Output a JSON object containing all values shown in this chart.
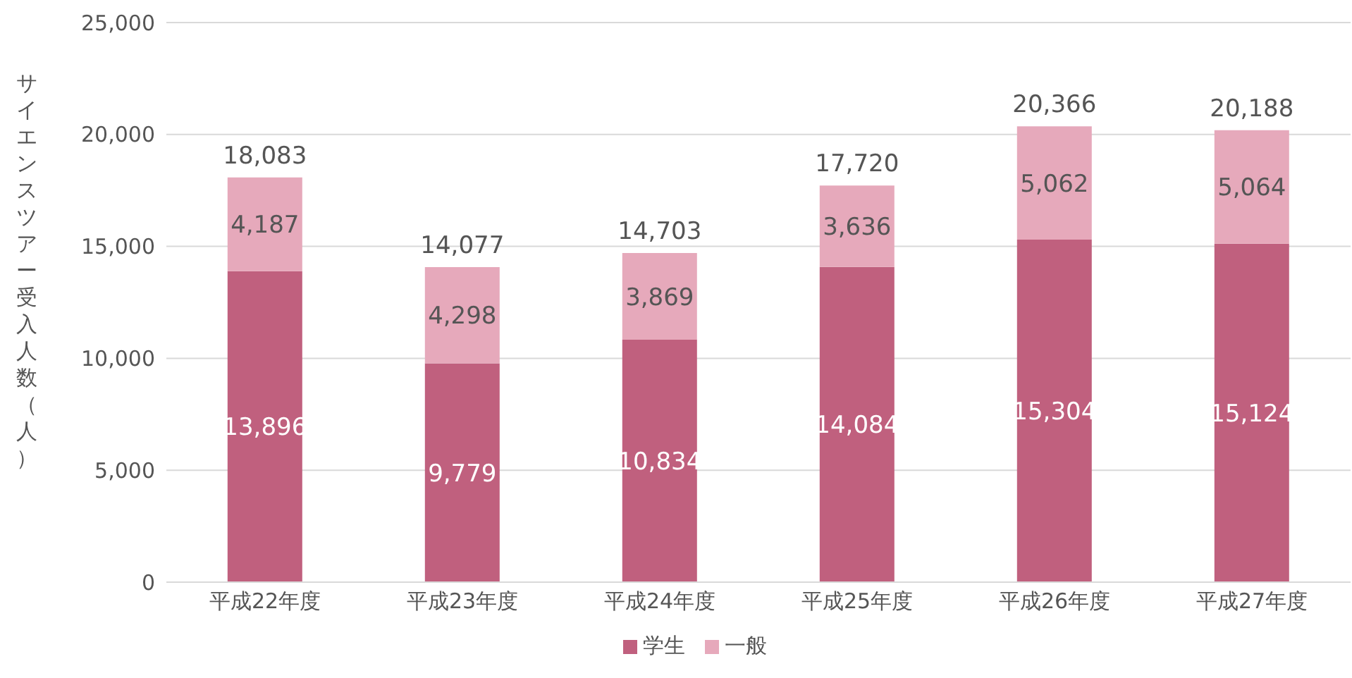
{
  "chart_data": {
    "type": "bar",
    "stacked": true,
    "ylabel": "サイエンスツアー受入人数（人）",
    "categories": [
      "平成22年度",
      "平成23年度",
      "平成24年度",
      "平成25年度",
      "平成26年度",
      "平成27年度"
    ],
    "series": [
      {
        "name": "学生",
        "color": "#c0607e",
        "values": [
          13896,
          9779,
          10834,
          14084,
          15304,
          15124
        ],
        "value_labels": [
          "13,896",
          "9,779",
          "10,834",
          "14,084",
          "15,304",
          "15,124"
        ]
      },
      {
        "name": "一般",
        "color": "#e6a9bb",
        "values": [
          4187,
          4298,
          3869,
          3636,
          5062,
          5064
        ],
        "value_labels": [
          "4,187",
          "4,298",
          "3,869",
          "3,636",
          "5,062",
          "5,064"
        ]
      }
    ],
    "totals": [
      "18,083",
      "14,077",
      "14,703",
      "17,720",
      "20,366",
      "20,188"
    ],
    "ylim": [
      0,
      25000
    ],
    "yticks": [
      0,
      {
        "value": 5000,
        "label": "5,000"
      },
      {
        "value": 10000,
        "label": "10,000"
      },
      {
        "value": 15000,
        "label": "15,000"
      },
      {
        "value": 20000,
        "label": "20,000"
      },
      {
        "value": 25000,
        "label": "25,000"
      }
    ],
    "grid": "y",
    "legend": "bottom"
  }
}
